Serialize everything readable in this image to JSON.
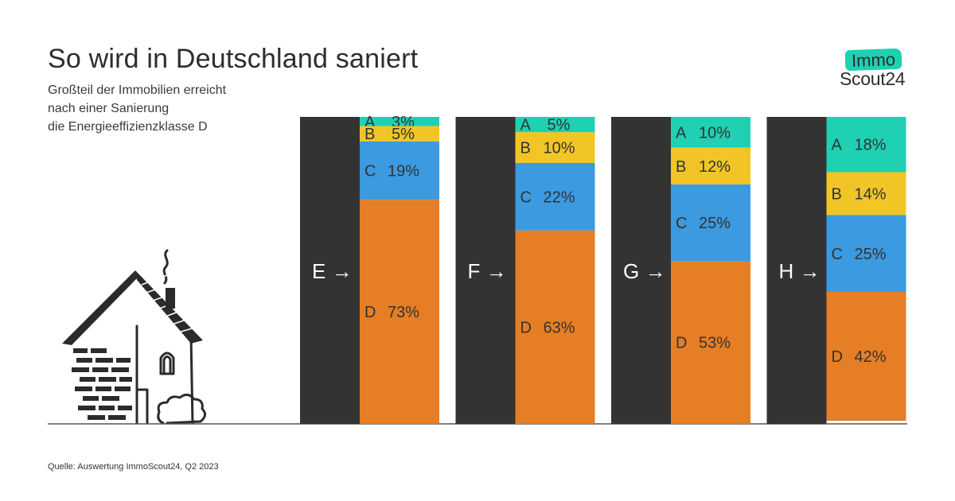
{
  "title": "So wird in Deutschland saniert",
  "subtitle_lines": [
    "Großteil der Immobilien erreicht",
    "nach einer Sanierung",
    "die Energieeffizienzklasse D"
  ],
  "source": "Quelle: Auswertung ImmoScout24, Q2 2023",
  "logo": {
    "top": "Immo",
    "bottom": "Scout24"
  },
  "colors": {
    "dark": "#333333",
    "A": "#1fd0b2",
    "B": "#f2c526",
    "C": "#3b9ae0",
    "D": "#e57e24",
    "text": "#333333"
  },
  "arrow_glyph": "→",
  "chart_data": {
    "type": "bar",
    "stacked": true,
    "title": "So wird in Deutschland saniert",
    "categories": [
      "E",
      "F",
      "G",
      "H"
    ],
    "classes": [
      "A",
      "B",
      "C",
      "D"
    ],
    "series": [
      {
        "name": "A",
        "values": [
          3,
          5,
          10,
          18
        ]
      },
      {
        "name": "B",
        "values": [
          5,
          10,
          12,
          14
        ]
      },
      {
        "name": "C",
        "values": [
          19,
          22,
          25,
          25
        ]
      },
      {
        "name": "D",
        "values": [
          73,
          63,
          53,
          42
        ]
      }
    ],
    "unit": "%",
    "xlabel": "",
    "ylabel": ""
  }
}
